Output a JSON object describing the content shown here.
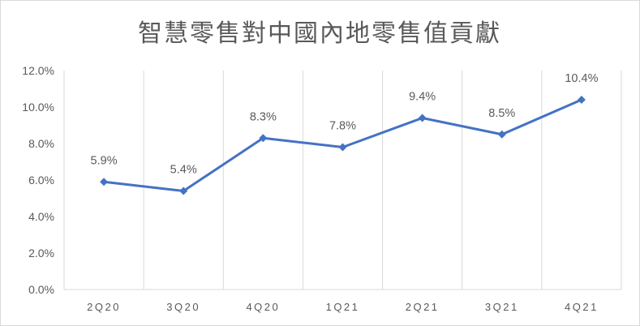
{
  "chart_data": {
    "type": "line",
    "title": "智慧零售對中國內地零售值貢獻",
    "xlabel": "",
    "ylabel": "",
    "categories": [
      "2Q20",
      "3Q20",
      "4Q20",
      "1Q21",
      "2Q21",
      "3Q21",
      "4Q21"
    ],
    "series": [
      {
        "values": [
          5.9,
          5.4,
          8.3,
          7.8,
          9.4,
          8.5,
          10.4
        ],
        "labels": [
          "5.9%",
          "5.4%",
          "8.3%",
          "7.8%",
          "9.4%",
          "8.5%",
          "10.4%"
        ]
      }
    ],
    "ylim": [
      0,
      12
    ],
    "yticks": [
      0,
      2,
      4,
      6,
      8,
      10,
      12
    ],
    "ytick_labels": [
      "0.0%",
      "2.0%",
      "4.0%",
      "6.0%",
      "8.0%",
      "10.0%",
      "12.0%"
    ],
    "grid": "vertical",
    "legend": "none",
    "colors": {
      "line": "#4472c4",
      "text": "#595959",
      "grid": "#d9d9d9"
    }
  }
}
